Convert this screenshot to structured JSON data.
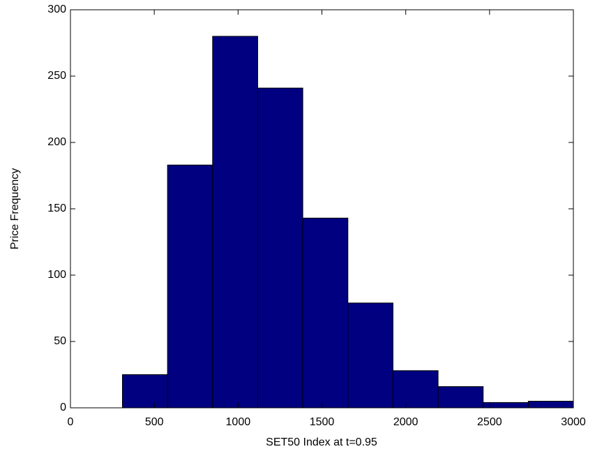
{
  "chart_data": {
    "type": "histogram",
    "xlabel": "SET50 Index at t=0.95",
    "ylabel": "Price Frequency",
    "bins": [
      310,
      579,
      848,
      1117,
      1386,
      1655,
      1924,
      2193,
      2462,
      2731,
      3000
    ],
    "counts": [
      25,
      183,
      280,
      241,
      143,
      79,
      28,
      16,
      4,
      5
    ],
    "color": "#000080",
    "xlim": [
      0,
      3000
    ],
    "xticks": [
      0,
      500,
      1000,
      1500,
      2000,
      2500,
      3000
    ],
    "ylim": [
      0,
      300
    ],
    "yticks": [
      0,
      50,
      100,
      150,
      200,
      250,
      300
    ]
  }
}
